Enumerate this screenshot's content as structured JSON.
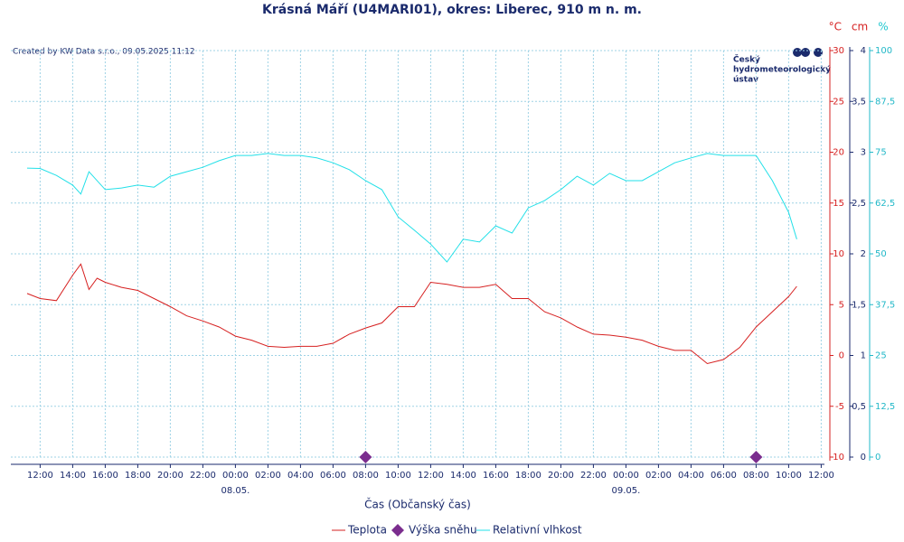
{
  "chart_data": {
    "type": "line",
    "title": "Krásná Máří (U4MARI01), okres: Liberec, 910 m n. m.",
    "credit": "Created by KW Data s.r.o., 09.05.2025 11:12",
    "logo": [
      "Český",
      "hydrometeorologický",
      "ústav"
    ],
    "x_label": "Čas (Občanský čas)",
    "axis_units": {
      "y": "°C",
      "y2": "cm",
      "y3": "%"
    },
    "grid": true,
    "xlim": [
      -1.8,
      48.2
    ],
    "xticks": [
      {
        "value": 0,
        "label": "12:00"
      },
      {
        "value": 2,
        "label": "14:00"
      },
      {
        "value": 4,
        "label": "16:00"
      },
      {
        "value": 6,
        "label": "18:00"
      },
      {
        "value": 8,
        "label": "20:00"
      },
      {
        "value": 10,
        "label": "22:00"
      },
      {
        "value": 12,
        "label": "00:00"
      },
      {
        "value": 14,
        "label": "02:00"
      },
      {
        "value": 16,
        "label": "04:00"
      },
      {
        "value": 18,
        "label": "06:00"
      },
      {
        "value": 20,
        "label": "08:00"
      },
      {
        "value": 22,
        "label": "10:00"
      },
      {
        "value": 24,
        "label": "12:00"
      },
      {
        "value": 26,
        "label": "14:00"
      },
      {
        "value": 28,
        "label": "16:00"
      },
      {
        "value": 30,
        "label": "18:00"
      },
      {
        "value": 32,
        "label": "20:00"
      },
      {
        "value": 34,
        "label": "22:00"
      },
      {
        "value": 36,
        "label": "00:00"
      },
      {
        "value": 38,
        "label": "02:00"
      },
      {
        "value": 40,
        "label": "04:00"
      },
      {
        "value": 42,
        "label": "06:00"
      },
      {
        "value": 44,
        "label": "08:00"
      },
      {
        "value": 46,
        "label": "10:00"
      },
      {
        "value": 48,
        "label": "12:00"
      }
    ],
    "date_labels": [
      {
        "value": 12,
        "label": "08.05."
      },
      {
        "value": 36,
        "label": "09.05."
      }
    ],
    "ylim": [
      -10,
      30
    ],
    "yticks": [
      -10,
      -5,
      0,
      5,
      10,
      15,
      20,
      25,
      30
    ],
    "y2lim": [
      0,
      4
    ],
    "y2ticks": [
      0,
      {
        "value": 0.5,
        "label": "0,5"
      },
      1,
      {
        "value": 1.5,
        "label": "1,5"
      },
      2,
      {
        "value": 2.5,
        "label": "2,5"
      },
      3,
      {
        "value": 3.5,
        "label": "3,5"
      },
      4
    ],
    "y3lim": [
      0,
      100
    ],
    "y3ticks": [
      0,
      {
        "value": 12.5,
        "label": "12,5"
      },
      25,
      {
        "value": 37.5,
        "label": "37,5"
      },
      50,
      {
        "value": 62.5,
        "label": "62,5"
      },
      75,
      {
        "value": 87.5,
        "label": "87,5"
      },
      100
    ],
    "series": [
      {
        "name": "Teplota",
        "color": "#d62020",
        "axis": "y",
        "kind": "line",
        "x": [
          -0.8,
          0,
          1,
          2,
          2.5,
          3,
          3.5,
          4,
          5,
          6,
          7,
          8,
          9,
          10,
          11,
          12,
          13,
          14,
          15,
          16,
          17,
          18,
          19,
          20,
          21,
          22,
          23,
          24,
          25,
          26,
          27,
          28,
          29,
          30,
          31,
          32,
          33,
          34,
          35,
          36,
          37,
          38,
          39,
          40,
          41,
          42,
          43,
          44,
          45,
          46,
          46.5
        ],
        "values": [
          6.1,
          5.6,
          5.4,
          7.9,
          9.0,
          6.5,
          7.6,
          7.2,
          6.7,
          6.4,
          5.6,
          4.8,
          3.9,
          3.4,
          2.8,
          1.9,
          1.5,
          0.9,
          0.8,
          0.9,
          0.9,
          1.2,
          2.1,
          2.7,
          3.2,
          4.8,
          4.8,
          7.2,
          7.0,
          6.7,
          6.7,
          7.0,
          5.6,
          5.6,
          4.3,
          3.7,
          2.8,
          2.1,
          2.0,
          1.8,
          1.5,
          0.9,
          0.5,
          0.5,
          -0.8,
          -0.4,
          0.8,
          2.8,
          4.3,
          5.8,
          6.8
        ]
      },
      {
        "name": "Výška sněhu",
        "color": "#7b2d8e",
        "axis": "y2",
        "kind": "marker",
        "x": [
          20,
          44
        ],
        "values": [
          0,
          0
        ]
      },
      {
        "name": "Relativní vlhkost",
        "color": "#22e0e8",
        "axis": "y3",
        "kind": "line",
        "x": [
          -0.8,
          0,
          1,
          2,
          2.5,
          3,
          4,
          5,
          6,
          7,
          8,
          9,
          10,
          11,
          12,
          13,
          14,
          15,
          16,
          17,
          18,
          19,
          20,
          21,
          22,
          23,
          24,
          25,
          26,
          27,
          28,
          29,
          30,
          31,
          32,
          33,
          34,
          35,
          36,
          37,
          38,
          39,
          40,
          41,
          42,
          43,
          44,
          45,
          46,
          46.5
        ],
        "values": [
          71.1,
          71,
          69.3,
          66.9,
          64.7,
          70.2,
          65.8,
          66.2,
          66.9,
          66.4,
          69.1,
          70.2,
          71.3,
          72.9,
          74.2,
          74.2,
          74.7,
          74.2,
          74.2,
          73.6,
          72.4,
          70.7,
          68,
          65.8,
          59.1,
          55.8,
          52.4,
          48,
          53.6,
          52.9,
          56.9,
          55.1,
          61.3,
          63.1,
          65.8,
          69.1,
          66.9,
          69.8,
          68,
          68,
          70.2,
          72.4,
          73.6,
          74.7,
          74.2,
          74.2,
          74.2,
          68,
          60.2,
          53.6
        ]
      }
    ]
  }
}
